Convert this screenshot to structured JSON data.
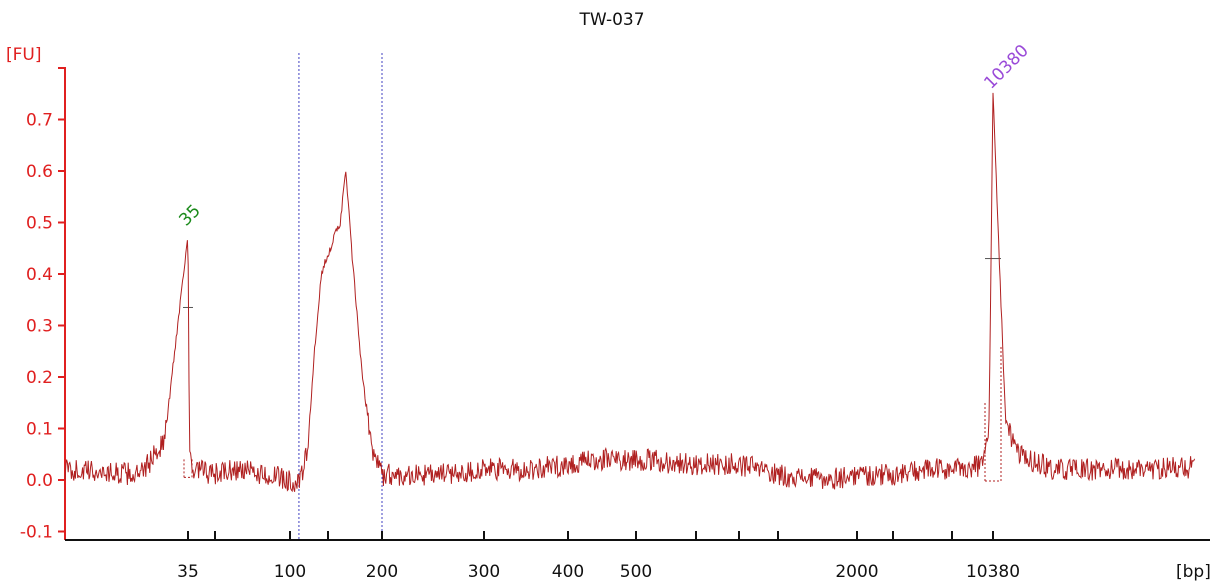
{
  "chart_data": {
    "type": "line",
    "title": "TW-037",
    "ylabel": "[FU]",
    "xlabel": "[bp]",
    "ylim": [
      -0.12,
      0.82
    ],
    "yticks": [
      {
        "value": -0.1,
        "label": "-0.1"
      },
      {
        "value": 0.0,
        "label": "0.0"
      },
      {
        "value": 0.1,
        "label": "0.1"
      },
      {
        "value": 0.2,
        "label": "0.2"
      },
      {
        "value": 0.3,
        "label": "0.3"
      },
      {
        "value": 0.4,
        "label": "0.4"
      },
      {
        "value": 0.5,
        "label": "0.5"
      },
      {
        "value": 0.6,
        "label": "0.6"
      },
      {
        "value": 0.7,
        "label": "0.7"
      }
    ],
    "xticks": [
      {
        "value": 35,
        "label": "35"
      },
      {
        "value": 60,
        "label": ""
      },
      {
        "value": 100,
        "label": "100"
      },
      {
        "value": 150,
        "label": ""
      },
      {
        "value": 200,
        "label": "200"
      },
      {
        "value": 300,
        "label": "300"
      },
      {
        "value": 400,
        "label": "400"
      },
      {
        "value": 500,
        "label": "500"
      },
      {
        "value": 600,
        "label": ""
      },
      {
        "value": 700,
        "label": ""
      },
      {
        "value": 1000,
        "label": ""
      },
      {
        "value": 2000,
        "label": "2000"
      },
      {
        "value": 3000,
        "label": ""
      },
      {
        "value": 7000,
        "label": ""
      },
      {
        "value": 10380,
        "label": "10380"
      }
    ],
    "x_axis_scale": "ladder (non-linear, sizing markers 35 bp and 10380 bp)",
    "region_markers_bp": [
      110,
      200
    ],
    "marker_peaks": [
      {
        "label": "35",
        "bp": 35,
        "height": 0.48
      },
      {
        "label": "10380",
        "bp": 10380,
        "height": 0.75
      }
    ],
    "series": [
      {
        "points": [
          [
            30,
            0.02
          ],
          [
            33,
            0.01
          ],
          [
            34,
            0.08
          ],
          [
            35,
            0.48
          ],
          [
            36,
            0.06
          ],
          [
            38,
            0.01
          ],
          [
            45,
            0.02
          ],
          [
            55,
            0.01
          ],
          [
            70,
            0.02
          ],
          [
            85,
            0.01
          ],
          [
            100,
            0.0
          ],
          [
            110,
            -0.01
          ],
          [
            120,
            0.05
          ],
          [
            130,
            0.25
          ],
          [
            140,
            0.4
          ],
          [
            150,
            0.44
          ],
          [
            160,
            0.5
          ],
          [
            165,
            0.6
          ],
          [
            170,
            0.45
          ],
          [
            180,
            0.2
          ],
          [
            190,
            0.06
          ],
          [
            200,
            0.01
          ],
          [
            250,
            0.01
          ],
          [
            300,
            0.02
          ],
          [
            350,
            0.02
          ],
          [
            400,
            0.03
          ],
          [
            450,
            0.04
          ],
          [
            500,
            0.04
          ],
          [
            600,
            0.03
          ],
          [
            700,
            0.03
          ],
          [
            850,
            0.02
          ],
          [
            1000,
            0.01
          ],
          [
            1500,
            0.0
          ],
          [
            2000,
            0.01
          ],
          [
            3000,
            0.01
          ],
          [
            5000,
            0.02
          ],
          [
            7000,
            0.02
          ],
          [
            9500,
            0.03
          ],
          [
            10000,
            0.12
          ],
          [
            10380,
            0.75
          ],
          [
            10700,
            0.12
          ],
          [
            11000,
            0.05
          ],
          [
            12000,
            0.02
          ],
          [
            14000,
            0.02
          ],
          [
            17000,
            0.025
          ]
        ]
      }
    ],
    "colors": {
      "trace": "#b02020",
      "axes": "#e02020",
      "y_tick_labels": "#e02020",
      "x_axis": "#111111",
      "region_lines": "#4040c0",
      "label_35": "#1a8a1a",
      "label_10380": "#9a4ad8",
      "half_height_marks": "#555555"
    }
  }
}
